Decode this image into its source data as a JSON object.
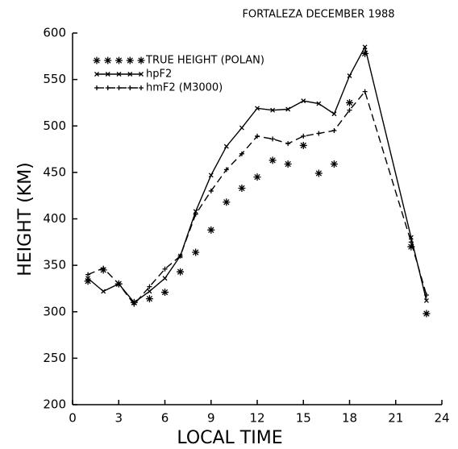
{
  "chart_data": {
    "type": "line",
    "title": "FORTALEZA DECEMBER 1988",
    "x_label": "LOCAL TIME",
    "y_label": "HEIGHT (KM)",
    "xlim": [
      0,
      24
    ],
    "xticks": [
      0,
      3,
      6,
      9,
      12,
      15,
      18,
      21,
      24
    ],
    "ylim": [
      200,
      600
    ],
    "yticks": [
      200,
      250,
      300,
      350,
      400,
      450,
      500,
      550,
      600
    ],
    "legend": "upper left",
    "series": [
      {
        "name": "TRUE HEIGHT (POLAN)",
        "color": "#000000",
        "line": "none",
        "marker": "asterisk",
        "x": [
          1,
          2,
          3,
          4,
          5,
          6,
          7,
          8,
          9,
          10,
          11,
          12,
          13,
          14,
          15,
          16,
          17,
          18,
          19,
          22,
          23
        ],
        "values": [
          333,
          345,
          330,
          310,
          314,
          321,
          343,
          364,
          388,
          418,
          433,
          445,
          463,
          459,
          479,
          449,
          459,
          525,
          578,
          370,
          298
        ]
      },
      {
        "name": "hpF2",
        "color": "#000000",
        "line": "solid",
        "marker": "x",
        "x": [
          1,
          2,
          3,
          4,
          5,
          6,
          7,
          8,
          9,
          10,
          11,
          12,
          13,
          14,
          15,
          16,
          17,
          18,
          19,
          22,
          23
        ],
        "values": [
          336,
          322,
          330,
          310,
          322,
          336,
          360,
          408,
          447,
          478,
          498,
          519,
          517,
          518,
          527,
          524,
          513,
          554,
          585,
          380,
          312
        ]
      },
      {
        "name": "hmF2 (M3000)",
        "color": "#000000",
        "line": "dashed",
        "marker": "plus",
        "x": [
          1,
          2,
          3,
          4,
          5,
          6,
          7,
          8,
          9,
          10,
          11,
          12,
          13,
          14,
          15,
          16,
          17,
          18,
          19,
          22,
          23
        ],
        "values": [
          340,
          347,
          330,
          308,
          327,
          346,
          360,
          405,
          430,
          453,
          470,
          489,
          486,
          481,
          489,
          492,
          495,
          517,
          537,
          375,
          318
        ]
      }
    ]
  }
}
